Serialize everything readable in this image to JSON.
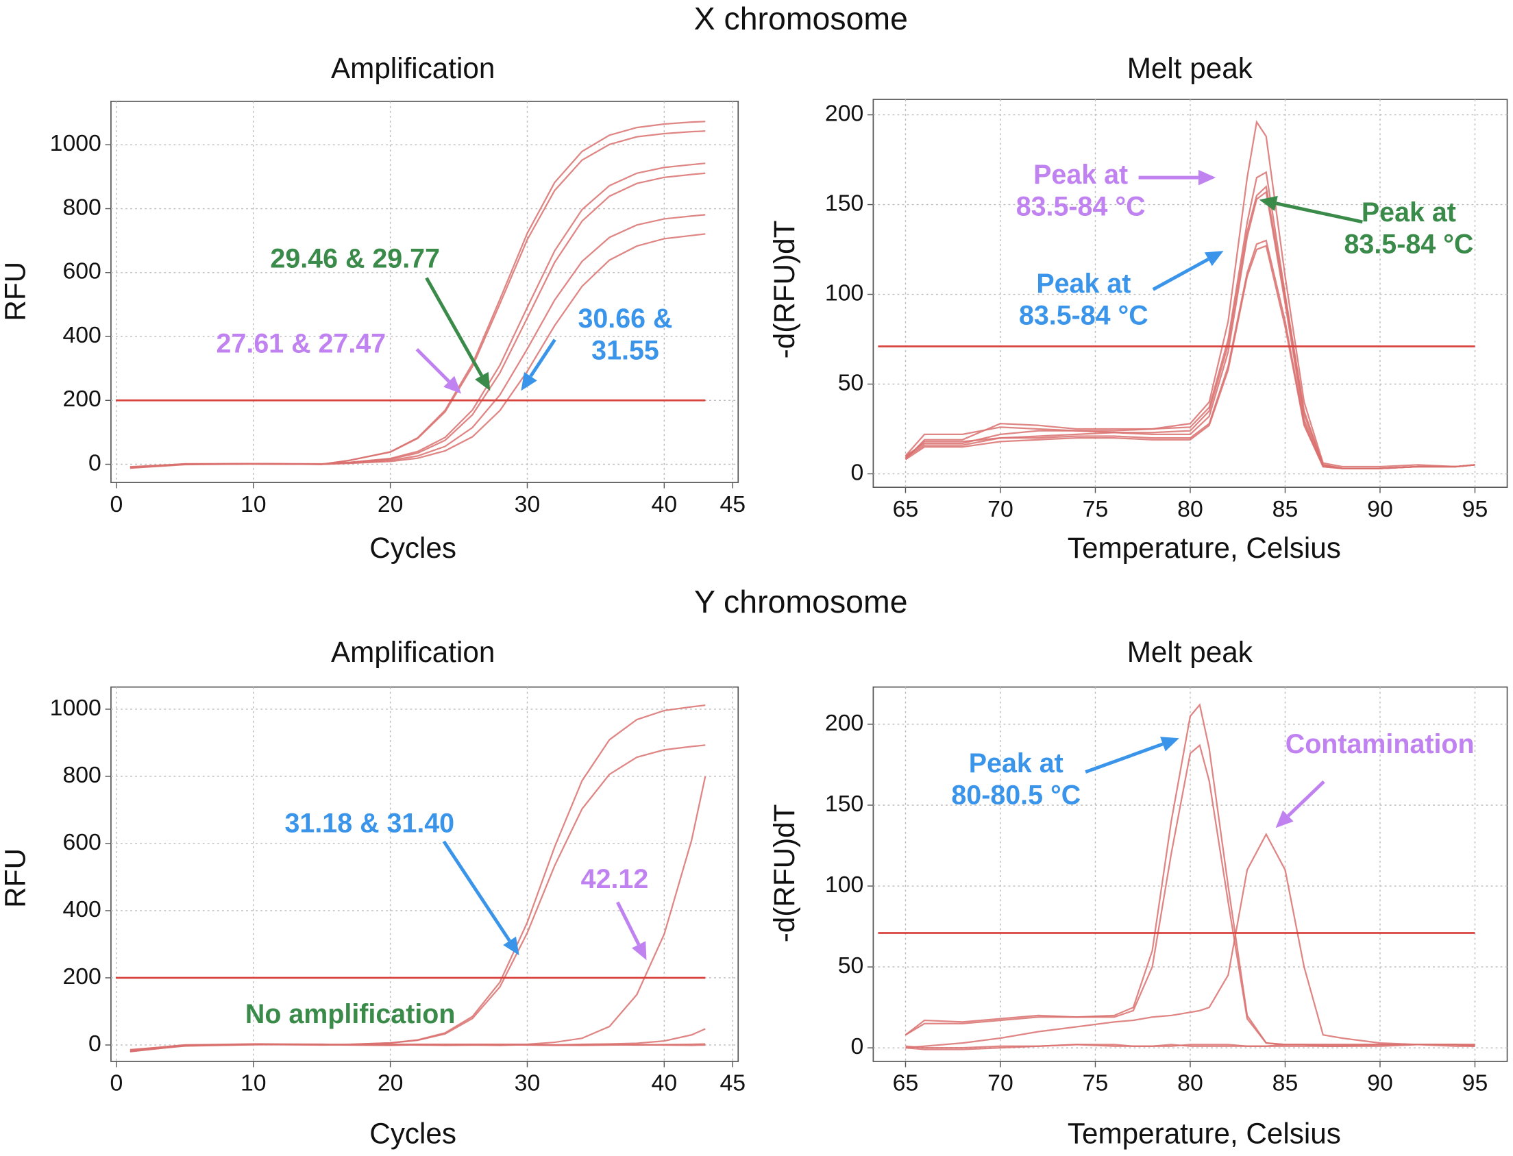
{
  "sections": [
    "X chromosome",
    "Y chromosome"
  ],
  "chart_data": [
    {
      "type": "line",
      "title": "Amplification",
      "xlabel": "Cycles",
      "ylabel": "RFU",
      "xlim": [
        -0.4,
        45.4
      ],
      "ylim": [
        -57,
        1136
      ],
      "xticks": [
        0,
        10,
        20,
        30,
        40,
        45
      ],
      "yticks": [
        0,
        200,
        400,
        600,
        800,
        1000
      ],
      "grid": true,
      "threshold": 200,
      "threshold_color": "#d9433e",
      "x": [
        1,
        5,
        10,
        15,
        17,
        20,
        22,
        24,
        26,
        28,
        30,
        32,
        34,
        36,
        38,
        40,
        42,
        43
      ],
      "series": [
        {
          "color": "#d9706f",
          "values": [
            -10,
            0,
            2,
            0,
            12,
            39,
            83,
            169,
            315,
            516,
            723,
            882,
            979,
            1030,
            1054,
            1065,
            1071,
            1073
          ]
        },
        {
          "color": "#d9706f",
          "values": [
            -12,
            -1,
            1,
            0,
            12,
            38,
            81,
            164,
            306,
            502,
            703,
            857,
            952,
            1001,
            1025,
            1035,
            1041,
            1043
          ]
        },
        {
          "color": "#d9706f",
          "values": [
            -8,
            1,
            2,
            1,
            6,
            18,
            40,
            84,
            170,
            310,
            491,
            668,
            797,
            872,
            911,
            929,
            938,
            942
          ]
        },
        {
          "color": "#d9706f",
          "values": [
            -9,
            0,
            1,
            0,
            5,
            16,
            35,
            75,
            155,
            286,
            458,
            632,
            761,
            839,
            879,
            898,
            907,
            911
          ]
        },
        {
          "color": "#d9706f",
          "values": [
            -11,
            0,
            2,
            0,
            4,
            12,
            26,
            56,
            115,
            217,
            361,
            514,
            635,
            710,
            749,
            768,
            777,
            781
          ]
        },
        {
          "color": "#d9706f",
          "values": [
            -10,
            1,
            1,
            0,
            3,
            9,
            19,
            42,
            86,
            168,
            291,
            434,
            557,
            639,
            683,
            706,
            716,
            721
          ]
        }
      ],
      "annotations": [
        {
          "lines": [
            "29.46 & 29.77"
          ],
          "color": "#3a8a4a"
        },
        {
          "lines": [
            "27.61 & 27.47"
          ],
          "color": "#c082f0"
        },
        {
          "lines": [
            "30.66 &",
            "31.55"
          ],
          "color": "#3a95ea"
        }
      ]
    },
    {
      "type": "line",
      "title": "Melt peak",
      "xlabel": "Temperature, Celsius",
      "ylabel": "-d(RFU)dT",
      "xlim": [
        63.3,
        96.7
      ],
      "ylim": [
        -7.5,
        208.6
      ],
      "xticks": [
        65,
        70,
        75,
        80,
        85,
        90,
        95
      ],
      "yticks": [
        0,
        50,
        100,
        150,
        200
      ],
      "grid": true,
      "threshold": 71,
      "threshold_color": "#d9433e",
      "x": [
        65,
        66,
        68,
        70,
        72,
        74,
        76,
        78,
        80,
        81,
        82,
        83,
        83.5,
        84,
        85,
        86,
        87,
        88,
        90,
        92,
        94,
        95
      ],
      "series": [
        {
          "color": "#d9706f",
          "values": [
            10,
            22,
            22,
            26,
            25,
            24,
            24,
            25,
            28,
            40,
            85,
            165,
            196,
            188,
            110,
            40,
            6,
            4,
            4,
            5,
            4,
            5
          ]
        },
        {
          "color": "#d9706f",
          "values": [
            8,
            19,
            19,
            28,
            27,
            25,
            25,
            25,
            26,
            37,
            75,
            140,
            165,
            168,
            100,
            35,
            5,
            3,
            3,
            4,
            4,
            5
          ]
        },
        {
          "color": "#d9706f",
          "values": [
            9,
            18,
            18,
            20,
            21,
            22,
            23,
            23,
            24,
            35,
            72,
            135,
            155,
            160,
            98,
            33,
            5,
            3,
            3,
            4,
            4,
            5
          ]
        },
        {
          "color": "#d9706f",
          "values": [
            10,
            17,
            17,
            22,
            24,
            24,
            23,
            22,
            22,
            32,
            68,
            132,
            153,
            157,
            95,
            30,
            5,
            3,
            3,
            4,
            4,
            5
          ]
        },
        {
          "color": "#d9706f",
          "values": [
            9,
            16,
            16,
            20,
            20,
            21,
            21,
            20,
            20,
            28,
            60,
            112,
            128,
            130,
            85,
            28,
            4,
            3,
            3,
            4,
            4,
            5
          ]
        },
        {
          "color": "#d9706f",
          "values": [
            8,
            15,
            15,
            18,
            19,
            20,
            20,
            19,
            19,
            27,
            58,
            110,
            125,
            127,
            82,
            27,
            4,
            3,
            3,
            4,
            4,
            5
          ]
        }
      ],
      "annotations": [
        {
          "lines": [
            "Peak at",
            "83.5-84 °C"
          ],
          "color": "#c082f0"
        },
        {
          "lines": [
            "Peak at",
            "83.5-84 °C"
          ],
          "color": "#3a8a4a"
        },
        {
          "lines": [
            "Peak at",
            "83.5-84 °C"
          ],
          "color": "#3a95ea"
        }
      ]
    },
    {
      "type": "line",
      "title": "Amplification",
      "xlabel": "Cycles",
      "ylabel": "RFU",
      "xlim": [
        -0.4,
        45.4
      ],
      "ylim": [
        -49,
        1066
      ],
      "xticks": [
        0,
        10,
        20,
        30,
        40,
        45
      ],
      "yticks": [
        0,
        200,
        400,
        600,
        800,
        1000
      ],
      "grid": true,
      "threshold": 200,
      "threshold_color": "#d9433e",
      "x": [
        1,
        5,
        10,
        15,
        17,
        20,
        22,
        24,
        26,
        28,
        30,
        32,
        34,
        36,
        38,
        40,
        42,
        43
      ],
      "series": [
        {
          "color": "#d9706f",
          "values": [
            -20,
            -2,
            2,
            1,
            2,
            6,
            15,
            36,
            85,
            187,
            365,
            590,
            787,
            909,
            969,
            996,
            1007,
            1012
          ]
        },
        {
          "color": "#d9706f",
          "values": [
            -18,
            -3,
            1,
            2,
            1,
            6,
            14,
            33,
            79,
            173,
            334,
            534,
            703,
            806,
            857,
            879,
            889,
            893
          ]
        },
        {
          "color": "#d9706f",
          "values": [
            -15,
            0,
            3,
            2,
            1,
            2,
            2,
            2,
            2,
            2,
            2,
            8,
            20,
            55,
            150,
            330,
            610,
            800
          ]
        },
        {
          "color": "#d9706f",
          "values": [
            -16,
            0,
            2,
            1,
            1,
            0,
            1,
            0,
            1,
            0,
            1,
            0,
            2,
            3,
            5,
            12,
            30,
            48
          ]
        },
        {
          "color": "#d9706f",
          "values": [
            -14,
            -1,
            2,
            0,
            1,
            1,
            0,
            -1,
            0,
            1,
            0,
            -1,
            0,
            1,
            0,
            1,
            2,
            3
          ]
        },
        {
          "color": "#d9706f",
          "values": [
            -19,
            -2,
            1,
            1,
            0,
            -1,
            1,
            0,
            0,
            -1,
            1,
            0,
            -1,
            0,
            1,
            0,
            -1,
            0
          ]
        }
      ],
      "annotations": [
        {
          "lines": [
            "31.18 & 31.40"
          ],
          "color": "#3a95ea"
        },
        {
          "lines": [
            "42.12"
          ],
          "color": "#c082f0"
        },
        {
          "lines": [
            "No amplification"
          ],
          "color": "#3a8a4a"
        }
      ]
    },
    {
      "type": "line",
      "title": "Melt peak",
      "xlabel": "Temperature, Celsius",
      "ylabel": "-d(RFU)dT",
      "xlim": [
        63.3,
        96.7
      ],
      "ylim": [
        -8.4,
        223
      ],
      "xticks": [
        65,
        70,
        75,
        80,
        85,
        90,
        95
      ],
      "yticks": [
        0,
        50,
        100,
        150,
        200
      ],
      "grid": true,
      "threshold": 71,
      "threshold_color": "#d9433e",
      "x": [
        65,
        66,
        68,
        70,
        72,
        74,
        76,
        77,
        78,
        79,
        80,
        80.5,
        81,
        82,
        83,
        84,
        85,
        86,
        87,
        88,
        90,
        92,
        94,
        95
      ],
      "series": [
        {
          "color": "#d9706f",
          "values": [
            8,
            17,
            16,
            18,
            20,
            19,
            20,
            25,
            60,
            140,
            205,
            212,
            185,
            100,
            20,
            3,
            2,
            2,
            2,
            2,
            2,
            2,
            2,
            2
          ]
        },
        {
          "color": "#d9706f",
          "values": [
            8,
            15,
            15,
            17,
            19,
            19,
            19,
            23,
            50,
            120,
            182,
            187,
            165,
            90,
            18,
            3,
            2,
            2,
            2,
            2,
            2,
            2,
            2,
            2
          ]
        },
        {
          "color": "#d9706f",
          "values": [
            0,
            1,
            3,
            6,
            10,
            13,
            16,
            17,
            19,
            20,
            22,
            23,
            25,
            45,
            110,
            132,
            110,
            50,
            8,
            6,
            3,
            2,
            2,
            1
          ]
        },
        {
          "color": "#d9706f",
          "values": [
            0,
            -1,
            -1,
            0,
            1,
            2,
            2,
            1,
            1,
            1,
            2,
            2,
            2,
            2,
            1,
            1,
            1,
            1,
            1,
            1,
            1,
            2,
            2,
            1
          ]
        },
        {
          "color": "#d9706f",
          "values": [
            1,
            0,
            0,
            1,
            1,
            2,
            1,
            1,
            1,
            2,
            1,
            1,
            1,
            1,
            1,
            1,
            2,
            2,
            1,
            1,
            2,
            2,
            1,
            1
          ]
        }
      ],
      "annotations": [
        {
          "lines": [
            "Peak at",
            "80-80.5 °C"
          ],
          "color": "#3a95ea"
        },
        {
          "lines": [
            "Contamination"
          ],
          "color": "#c082f0"
        }
      ]
    }
  ]
}
